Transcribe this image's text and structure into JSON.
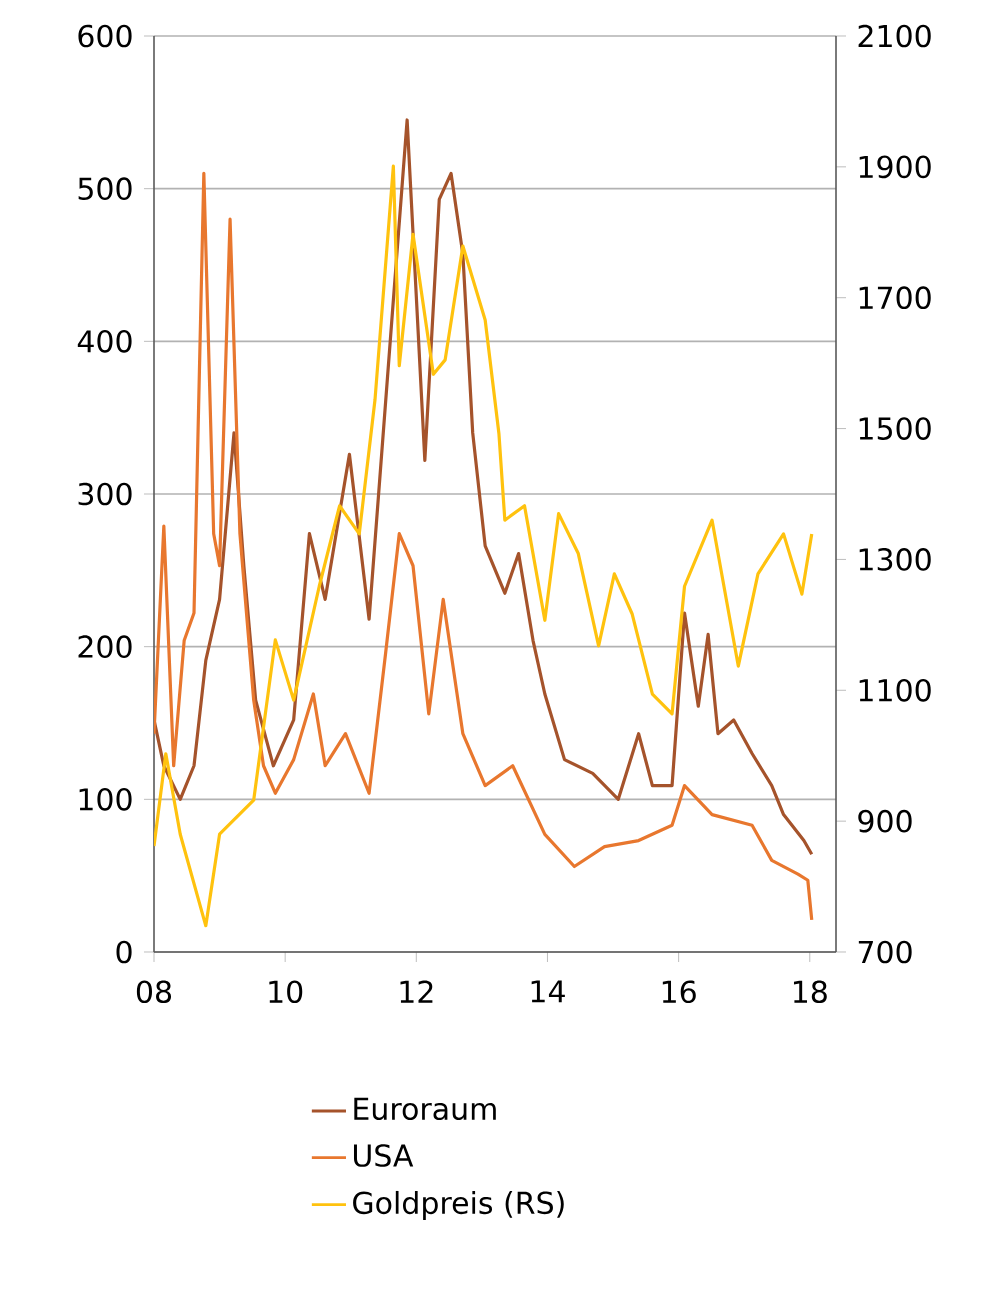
{
  "chart_data": {
    "type": "line",
    "xlim": [
      8,
      18.4
    ],
    "xticks": [
      {
        "value": 8,
        "label": "08"
      },
      10,
      12,
      14,
      16,
      18
    ],
    "ylim": [
      0,
      600
    ],
    "yticks": [
      0,
      100,
      200,
      300,
      400,
      500,
      600
    ],
    "y2lim": [
      700,
      2100
    ],
    "y2ticks": [
      700,
      900,
      1100,
      1300,
      1500,
      1700,
      1900,
      2100
    ],
    "grid": "y",
    "legend": "bottom",
    "marker": "none",
    "line_style": "solid",
    "series": [
      {
        "name": "Euroraum",
        "color": "#a5532b",
        "x": [
          8.0,
          8.15,
          8.4,
          8.61,
          8.79,
          9.0,
          9.22,
          9.37,
          9.55,
          9.82,
          10.13,
          10.37,
          10.61,
          10.98,
          11.28,
          11.65,
          11.86,
          12.13,
          12.35,
          12.53,
          12.71,
          12.86,
          13.05,
          13.35,
          13.56,
          13.78,
          13.96,
          14.26,
          14.69,
          15.08,
          15.39,
          15.6,
          15.9,
          16.09,
          16.3,
          16.45,
          16.6,
          16.84,
          17.12,
          17.42,
          17.6,
          17.91,
          18.03
        ],
        "values": [
          152,
          122,
          100,
          122,
          191,
          231,
          340,
          253,
          165,
          122,
          152,
          274,
          231,
          326,
          218,
          427,
          545,
          322,
          493,
          510,
          457,
          340,
          266,
          235,
          261,
          204,
          169,
          126,
          117,
          100,
          143,
          109,
          109,
          222,
          161,
          208,
          143,
          152,
          130,
          109,
          90,
          73,
          64
        ]
      },
      {
        "name": "USA",
        "color": "#e8772e",
        "x": [
          8.0,
          8.15,
          8.3,
          8.46,
          8.61,
          8.76,
          8.91,
          9.0,
          9.16,
          9.31,
          9.52,
          9.67,
          9.85,
          10.13,
          10.43,
          10.61,
          10.92,
          11.28,
          11.53,
          11.74,
          11.95,
          12.19,
          12.41,
          12.71,
          13.05,
          13.47,
          13.96,
          14.41,
          14.87,
          15.39,
          15.9,
          16.09,
          16.51,
          17.12,
          17.42,
          17.82,
          17.97,
          18.03
        ],
        "values": [
          143,
          279,
          122,
          204,
          222,
          510,
          274,
          253,
          480,
          274,
          165,
          122,
          104,
          126,
          169,
          122,
          143,
          104,
          195,
          274,
          253,
          156,
          231,
          143,
          109,
          122,
          77,
          56,
          69,
          73,
          83,
          109,
          90,
          83,
          60,
          51,
          47,
          21
        ]
      },
      {
        "name": "Goldpreis (RS)",
        "color": "#ffc20e",
        "axis": "y2",
        "x": [
          8.0,
          8.18,
          8.4,
          8.79,
          9.0,
          9.52,
          9.85,
          10.13,
          10.52,
          10.83,
          11.13,
          11.37,
          11.65,
          11.74,
          11.95,
          12.26,
          12.44,
          12.71,
          13.05,
          13.26,
          13.35,
          13.65,
          13.96,
          14.17,
          14.47,
          14.78,
          15.02,
          15.29,
          15.6,
          15.9,
          16.09,
          16.51,
          16.91,
          17.21,
          17.6,
          17.88,
          18.03
        ],
        "values": [
          862,
          1003,
          880,
          740,
          880,
          932,
          1177,
          1085,
          1259,
          1382,
          1339,
          1544,
          1901,
          1596,
          1797,
          1583,
          1605,
          1779,
          1666,
          1492,
          1360,
          1382,
          1207,
          1370,
          1309,
          1168,
          1278,
          1217,
          1094,
          1064,
          1259,
          1360,
          1137,
          1278,
          1339,
          1247,
          1339
        ]
      }
    ]
  }
}
